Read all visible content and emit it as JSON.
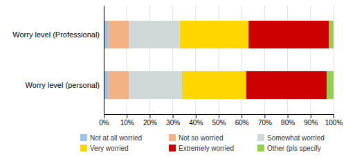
{
  "chart_data": {
    "type": "bar",
    "orientation": "horizontal",
    "stacked": true,
    "categories": [
      "Worry level (Professional)",
      "Worry level (personal)"
    ],
    "series": [
      {
        "name": "Not at all worried",
        "color": "#9dc3e6",
        "values": [
          2.0,
          2.0
        ]
      },
      {
        "name": "Not so worried",
        "color": "#f4b183",
        "values": [
          9.0,
          9.0
        ]
      },
      {
        "name": "Somewhat worried",
        "color": "#d0d8d8",
        "values": [
          22.0,
          23.0
        ]
      },
      {
        "name": "Very worried",
        "color": "#ffd700",
        "values": [
          30.0,
          28.0
        ]
      },
      {
        "name": "Extremely worried",
        "color": "#cc0000",
        "values": [
          35.0,
          35.0
        ]
      },
      {
        "name": "Other (pls specify",
        "color": "#92d050",
        "values": [
          2.0,
          3.0
        ]
      }
    ],
    "xlim": [
      0,
      100
    ],
    "xticks": [
      {
        "value": 0,
        "label": "0%"
      },
      {
        "value": 10,
        "label": "10%"
      },
      {
        "value": 20,
        "label": "20%"
      },
      {
        "value": 30,
        "label": "30%"
      },
      {
        "value": 40,
        "label": "40%"
      },
      {
        "value": 50,
        "label": "50%"
      },
      {
        "value": 60,
        "label": "60%"
      },
      {
        "value": 70,
        "label": "70%"
      },
      {
        "value": 80,
        "label": "80%"
      },
      {
        "value": 90,
        "label": "90%"
      },
      {
        "value": 100,
        "label": "100%"
      }
    ],
    "grid": true,
    "legend": "bottom"
  }
}
